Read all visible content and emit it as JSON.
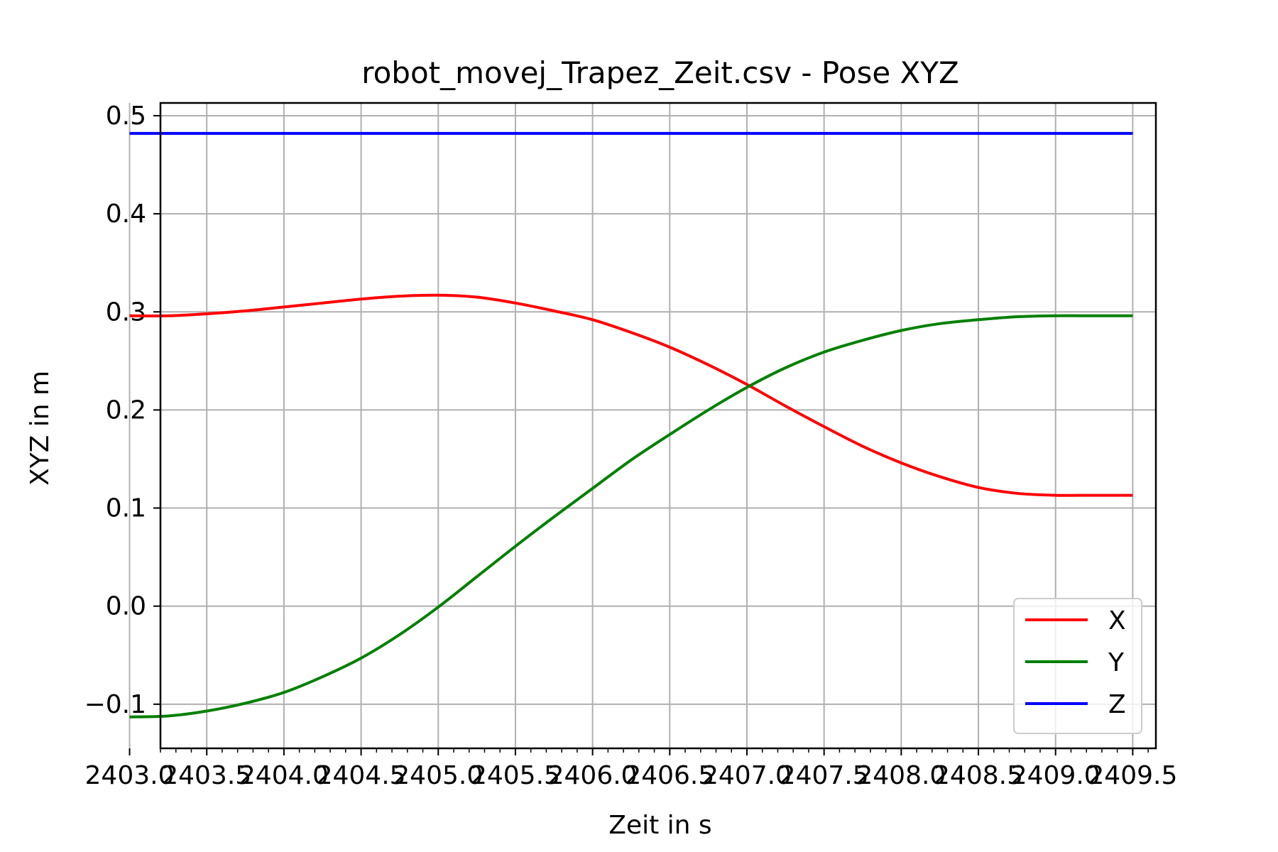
{
  "chart_data": {
    "type": "line",
    "title": "robot_movej_Trapez_Zeit.csv - Pose XYZ",
    "xlabel": "Zeit in s",
    "ylabel": "XYZ in m",
    "xlim": [
      2403.2,
      2409.65
    ],
    "ylim": [
      -0.145,
      0.513
    ],
    "grid": true,
    "legend_position": "lower right",
    "x_ticks": [
      "2403.0",
      "2403.5",
      "2404.0",
      "2404.5",
      "2405.0",
      "2405.5",
      "2406.0",
      "2406.5",
      "2407.0",
      "2407.5",
      "2408.0",
      "2408.5",
      "2409.0",
      "2409.5"
    ],
    "x_tick_values": [
      2403.0,
      2403.5,
      2404.0,
      2404.5,
      2405.0,
      2405.5,
      2406.0,
      2406.5,
      2407.0,
      2407.5,
      2408.0,
      2408.5,
      2409.0,
      2409.5
    ],
    "y_ticks": [
      "−0.1",
      "0.0",
      "0.1",
      "0.2",
      "0.3",
      "0.4",
      "0.5"
    ],
    "y_tick_values": [
      -0.1,
      0.0,
      0.1,
      0.2,
      0.3,
      0.4,
      0.5
    ],
    "series": [
      {
        "name": "X",
        "color": "#ff0000",
        "x": [
          2403.0,
          2403.25,
          2403.5,
          2403.75,
          2404.0,
          2404.25,
          2404.5,
          2404.75,
          2405.0,
          2405.25,
          2405.5,
          2405.75,
          2406.0,
          2406.25,
          2406.5,
          2406.75,
          2407.0,
          2407.25,
          2407.5,
          2407.75,
          2408.0,
          2408.25,
          2408.5,
          2408.75,
          2409.0,
          2409.25,
          2409.5
        ],
        "y": [
          0.296,
          0.296,
          0.298,
          0.301,
          0.305,
          0.309,
          0.313,
          0.316,
          0.317,
          0.315,
          0.309,
          0.301,
          0.292,
          0.279,
          0.264,
          0.246,
          0.226,
          0.204,
          0.183,
          0.163,
          0.146,
          0.132,
          0.121,
          0.115,
          0.113,
          0.113,
          0.113
        ]
      },
      {
        "name": "Y",
        "color": "#008000",
        "x": [
          2403.0,
          2403.25,
          2403.5,
          2403.75,
          2404.0,
          2404.25,
          2404.5,
          2404.75,
          2405.0,
          2405.25,
          2405.5,
          2405.75,
          2406.0,
          2406.25,
          2406.5,
          2406.75,
          2407.0,
          2407.25,
          2407.5,
          2407.75,
          2408.0,
          2408.25,
          2408.5,
          2408.75,
          2409.0,
          2409.25,
          2409.5
        ],
        "y": [
          -0.113,
          -0.112,
          -0.107,
          -0.099,
          -0.088,
          -0.072,
          -0.053,
          -0.029,
          -0.001,
          0.03,
          0.061,
          0.091,
          0.12,
          0.149,
          0.175,
          0.2,
          0.223,
          0.243,
          0.259,
          0.271,
          0.281,
          0.288,
          0.292,
          0.295,
          0.296,
          0.296,
          0.296
        ]
      },
      {
        "name": "Z",
        "color": "#0000ff",
        "x": [
          2403.0,
          2409.5
        ],
        "y": [
          0.482,
          0.482
        ]
      }
    ]
  }
}
